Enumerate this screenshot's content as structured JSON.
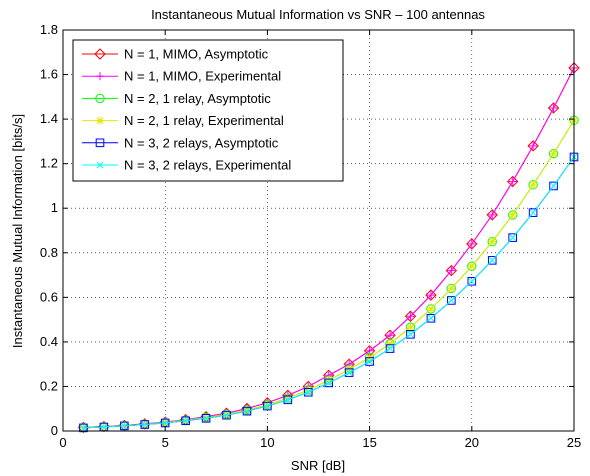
{
  "chart_data": {
    "type": "line",
    "title": "Instantaneous Mutual Information vs SNR – 100 antennas",
    "xlabel": "SNR [dB]",
    "ylabel": "Instantaneous Mutual Information [bits/s]",
    "xlim": [
      0,
      25
    ],
    "ylim": [
      0,
      1.8
    ],
    "xticks": [
      0,
      5,
      10,
      15,
      20,
      25
    ],
    "yticks": [
      0,
      0.2,
      0.4,
      0.6,
      0.8,
      1,
      1.2,
      1.4,
      1.6,
      1.8
    ],
    "xtick_labels": [
      "0",
      "5",
      "10",
      "15",
      "20",
      "25"
    ],
    "ytick_labels": [
      "0",
      "0.2",
      "0.4",
      "0.6",
      "0.8",
      "1",
      "1.2",
      "1.4",
      "1.6",
      "1.8"
    ],
    "grid": true,
    "legend_position": "top-left",
    "x": [
      1,
      2,
      3,
      4,
      5,
      6,
      7,
      8,
      9,
      10,
      11,
      12,
      13,
      14,
      15,
      16,
      17,
      18,
      19,
      20,
      21,
      22,
      23,
      24,
      25
    ],
    "series": [
      {
        "name": "N = 1, MIMO, Asymptotic",
        "color": "#ff0000",
        "marker": "diamond",
        "values": [
          0.016,
          0.02,
          0.025,
          0.032,
          0.04,
          0.051,
          0.064,
          0.08,
          0.101,
          0.127,
          0.16,
          0.2,
          0.25,
          0.3,
          0.36,
          0.43,
          0.515,
          0.61,
          0.72,
          0.84,
          0.97,
          1.12,
          1.28,
          1.45,
          1.63
        ]
      },
      {
        "name": "N = 1, MIMO, Experimental",
        "color": "#ff00ff",
        "marker": "plus",
        "values": [
          0.016,
          0.02,
          0.025,
          0.032,
          0.04,
          0.051,
          0.064,
          0.08,
          0.101,
          0.127,
          0.16,
          0.2,
          0.25,
          0.3,
          0.36,
          0.43,
          0.515,
          0.61,
          0.72,
          0.84,
          0.97,
          1.12,
          1.28,
          1.45,
          1.63
        ]
      },
      {
        "name": "N = 2, 1 relay, Asymptotic",
        "color": "#00ff00",
        "marker": "circle",
        "values": [
          0.015,
          0.019,
          0.024,
          0.03,
          0.038,
          0.048,
          0.06,
          0.075,
          0.094,
          0.118,
          0.148,
          0.184,
          0.228,
          0.276,
          0.33,
          0.392,
          0.466,
          0.548,
          0.64,
          0.74,
          0.85,
          0.97,
          1.105,
          1.245,
          1.395
        ]
      },
      {
        "name": "N = 2, 1 relay, Experimental",
        "color": "#e6e600",
        "marker": "star",
        "values": [
          0.015,
          0.019,
          0.024,
          0.03,
          0.038,
          0.048,
          0.06,
          0.075,
          0.094,
          0.118,
          0.148,
          0.184,
          0.228,
          0.276,
          0.33,
          0.392,
          0.466,
          0.548,
          0.64,
          0.74,
          0.85,
          0.97,
          1.105,
          1.245,
          1.395
        ]
      },
      {
        "name": "N = 3, 2 relays, Asymptotic",
        "color": "#0000ff",
        "marker": "square",
        "values": [
          0.014,
          0.018,
          0.023,
          0.029,
          0.036,
          0.046,
          0.057,
          0.071,
          0.089,
          0.112,
          0.14,
          0.174,
          0.216,
          0.262,
          0.312,
          0.37,
          0.434,
          0.506,
          0.586,
          0.672,
          0.766,
          0.868,
          0.98,
          1.1,
          1.23
        ]
      },
      {
        "name": "N = 3, 2 relays, Experimental",
        "color": "#00ffff",
        "marker": "x",
        "values": [
          0.014,
          0.018,
          0.023,
          0.029,
          0.036,
          0.046,
          0.057,
          0.071,
          0.089,
          0.112,
          0.14,
          0.174,
          0.216,
          0.262,
          0.312,
          0.37,
          0.434,
          0.506,
          0.586,
          0.672,
          0.766,
          0.868,
          0.98,
          1.1,
          1.23
        ]
      }
    ]
  }
}
